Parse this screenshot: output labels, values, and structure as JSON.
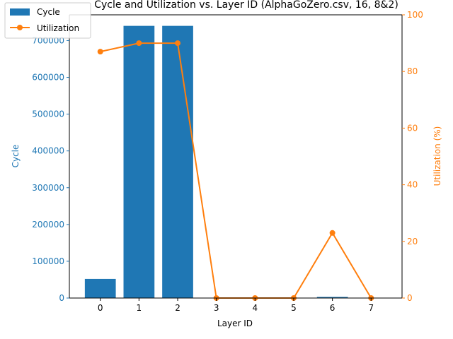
{
  "chart_data": {
    "type": "bar+line",
    "title": "Cycle and Utilization vs. Layer ID (AlphaGoZero.csv, 16, 8&2)",
    "xlabel": "Layer ID",
    "categories": [
      0,
      1,
      2,
      3,
      4,
      5,
      6,
      7
    ],
    "x_ticks": [
      "0",
      "1",
      "2",
      "3",
      "4",
      "5",
      "6",
      "7"
    ],
    "left_axis": {
      "label": "Cycle",
      "ylim": [
        0,
        770000
      ],
      "ticks": [
        0,
        100000,
        200000,
        300000,
        400000,
        500000,
        600000,
        700000
      ],
      "color": "#1f77b4"
    },
    "right_axis": {
      "label": "Utilization (%)",
      "ylim": [
        0,
        100
      ],
      "ticks": [
        0,
        20,
        40,
        60,
        80,
        100
      ],
      "color": "#ff7f0e"
    },
    "series": [
      {
        "name": "Cycle",
        "type": "bar",
        "axis": "left",
        "color": "#1f77b4",
        "values": [
          52000,
          740000,
          740000,
          0,
          0,
          0,
          3000,
          0
        ]
      },
      {
        "name": "Utilization",
        "type": "line",
        "axis": "right",
        "color": "#ff7f0e",
        "values": [
          87,
          90,
          90,
          0,
          0,
          0,
          23,
          0
        ]
      }
    ],
    "legend_position": "upper-left"
  }
}
